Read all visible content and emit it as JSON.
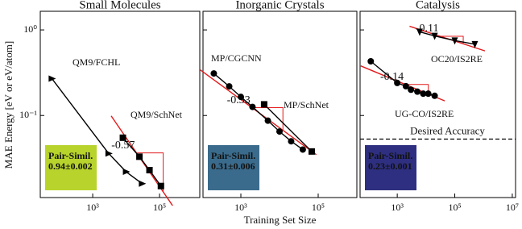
{
  "chart_data": [
    {
      "type": "line",
      "title": "Small Molecules",
      "ylabel": "MAE Energy [eV or eV/atom]",
      "xscale": "log",
      "yscale": "log",
      "xlim": [
        27,
        1600000
      ],
      "ylim": [
        0.011,
        1.65
      ],
      "xticks": [
        {
          "value": 1000,
          "label": "10³"
        },
        {
          "value": 100000,
          "label": "10⁵"
        }
      ],
      "yticks": [
        {
          "value": 1,
          "label": "10⁰"
        },
        {
          "value": 0.1,
          "label": "10⁻¹"
        }
      ],
      "series": [
        {
          "name": "QM9/FCHL",
          "color": "#000000",
          "marker": "triangle-right",
          "x": [
            60,
            3000,
            10000,
            30000
          ],
          "values": [
            0.27,
            0.036,
            0.022,
            0.016
          ]
        },
        {
          "name": "QM9/SchNet",
          "color": "#000000",
          "marker": "square",
          "x": [
            8000,
            25000,
            50000,
            110000
          ],
          "values": [
            0.055,
            0.033,
            0.023,
            0.015
          ],
          "fit": {
            "slope": -0.57,
            "color": "#e31a1c"
          }
        }
      ],
      "inset": {
        "label": "Pair-Simil.",
        "value": "0.94±0.002",
        "color": "#b8d42c",
        "text_color": "#000000"
      }
    },
    {
      "type": "line",
      "title": "Inorganic Crystals",
      "xlabel": "Training Set Size",
      "xscale": "log",
      "yscale": "log",
      "xlim": [
        105,
        1000000
      ],
      "ylim": [
        0.011,
        1.65
      ],
      "xticks": [
        {
          "value": 1000,
          "label": "10³"
        },
        {
          "value": 100000,
          "label": "10⁵"
        }
      ],
      "series": [
        {
          "name": "MP/CGCNN",
          "color": "#000000",
          "marker": "circle",
          "x": [
            200,
            500,
            1000,
            2000,
            5000,
            10000,
            20000,
            40000
          ],
          "values": [
            0.31,
            0.219,
            0.165,
            0.126,
            0.087,
            0.065,
            0.05,
            0.04
          ],
          "fit": {
            "slope": -0.33,
            "color": "#e31a1c"
          }
        },
        {
          "name": "MP/SchNet",
          "color": "#000000",
          "marker": "square",
          "x": [
            4000,
            68000
          ],
          "values": [
            0.135,
            0.038
          ]
        }
      ],
      "inset": {
        "label": "Pair-Simil.",
        "value": "0.31±0.006",
        "color": "#3a6b8c",
        "text_color": "#ffffff"
      }
    },
    {
      "type": "line",
      "title": "Catalysis",
      "xscale": "log",
      "yscale": "log",
      "xlim": [
        51,
        13000000
      ],
      "ylim": [
        0.011,
        1.65
      ],
      "xticks": [
        {
          "value": 1000,
          "label": "10³"
        },
        {
          "value": 100000,
          "label": "10⁵"
        },
        {
          "value": 10000000,
          "label": "10⁷"
        }
      ],
      "series": [
        {
          "name": "OC20/IS2RE",
          "color": "#000000",
          "marker": "triangle-down",
          "x": [
            6000,
            20000,
            100000,
            500000
          ],
          "values": [
            0.95,
            0.85,
            0.75,
            0.68
          ],
          "fit": {
            "slope": -0.11,
            "color": "#e31a1c"
          }
        },
        {
          "name": "UG-CO/IS2RE",
          "color": "#000000",
          "marker": "circle",
          "x": [
            120,
            1000,
            2000,
            3000,
            5000,
            8000,
            12000,
            20000
          ],
          "values": [
            0.43,
            0.24,
            0.22,
            0.2,
            0.19,
            0.18,
            0.18,
            0.17
          ],
          "fit": {
            "slope": -0.14,
            "color": "#e31a1c"
          }
        }
      ],
      "hline": {
        "value": 0.053,
        "label": "Desired Accuracy"
      },
      "inset": {
        "label": "Pair-Simil.",
        "value": "0.23±0.001",
        "color": "#2e2f80",
        "text_color": "#ffffff"
      }
    }
  ]
}
